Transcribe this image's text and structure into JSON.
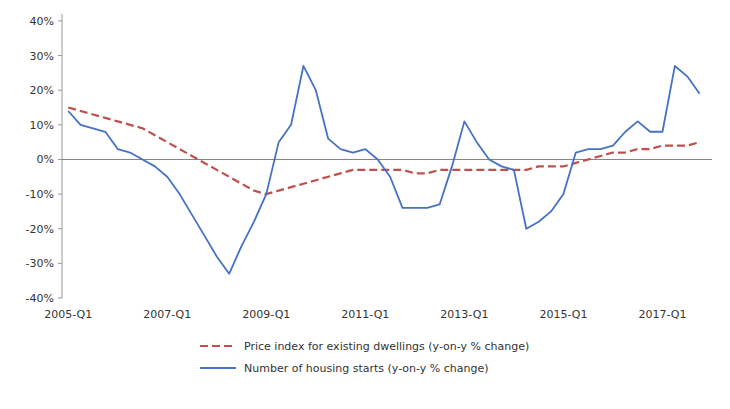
{
  "chart_data": {
    "type": "line",
    "categories": [
      "2005-Q1",
      null,
      null,
      null,
      null,
      null,
      null,
      null,
      "2007-Q1",
      null,
      null,
      null,
      null,
      null,
      null,
      null,
      "2009-Q1",
      null,
      null,
      null,
      null,
      null,
      null,
      null,
      "2011-Q1",
      null,
      null,
      null,
      null,
      null,
      null,
      null,
      "2013-Q1",
      null,
      null,
      null,
      null,
      null,
      null,
      null,
      "2015-Q1",
      null,
      null,
      null,
      null,
      null,
      null,
      null,
      "2017-Q1",
      null,
      null,
      null
    ],
    "series": [
      {
        "name": "Price index for existing dwellings (y-on-y % change)",
        "color": "#C0504D",
        "line_style": "dashed",
        "values": [
          15,
          14,
          13,
          12,
          11,
          10,
          9,
          7,
          5,
          3,
          1,
          -1,
          -3,
          -5,
          -7,
          -9,
          -10,
          -9,
          -8,
          -7,
          -6,
          -5,
          -4,
          -3,
          -3,
          -3,
          -3,
          -3,
          -4,
          -4,
          -3,
          -3,
          -3,
          -3,
          -3,
          -3,
          -3,
          -3,
          -2,
          -2,
          -2,
          -1,
          0,
          1,
          2,
          2,
          3,
          3,
          4,
          4,
          4,
          5
        ]
      },
      {
        "name": "Number of housing starts (y-on-y % change)",
        "color": "#4472C4",
        "line_style": "solid",
        "values": [
          14,
          10,
          9,
          8,
          3,
          2,
          0,
          -2,
          -5,
          -10,
          -16,
          -22,
          -28,
          -33,
          -25,
          -18,
          -10,
          5,
          10,
          27,
          20,
          6,
          3,
          2,
          3,
          0,
          -5,
          -14,
          -14,
          -14,
          -13,
          -2,
          11,
          5,
          0,
          -2,
          -3,
          -20,
          -18,
          -15,
          -10,
          2,
          3,
          3,
          4,
          8,
          11,
          8,
          8,
          27,
          24,
          19
        ]
      }
    ],
    "ylim": [
      -40,
      42
    ],
    "yticks": [
      {
        "value": -40,
        "label": "-40%"
      },
      {
        "value": -30,
        "label": "-30%"
      },
      {
        "value": -20,
        "label": "-20%"
      },
      {
        "value": -10,
        "label": "-10%"
      },
      {
        "value": 0,
        "label": "0%"
      },
      {
        "value": 10,
        "label": "10%"
      },
      {
        "value": 20,
        "label": "20%"
      },
      {
        "value": 30,
        "label": "30%"
      },
      {
        "value": 40,
        "label": "40%"
      }
    ],
    "grid": false,
    "legend": "bottom"
  }
}
